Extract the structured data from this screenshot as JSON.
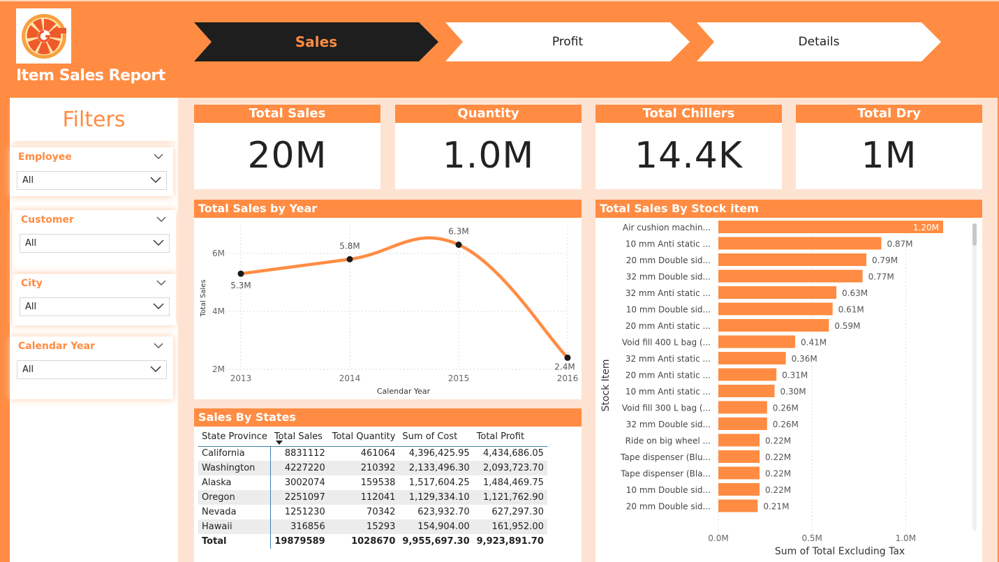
{
  "header": {
    "report_title": "Item Sales Report",
    "tabs": [
      {
        "label": "Sales",
        "active": true
      },
      {
        "label": "Profit",
        "active": false
      },
      {
        "label": "Details",
        "active": false
      }
    ]
  },
  "filters": {
    "title": "Filters",
    "slicers": [
      {
        "label": "Employee",
        "value": "All"
      },
      {
        "label": "Customer",
        "value": "All"
      },
      {
        "label": "City",
        "value": "All"
      },
      {
        "label": "Calendar Year",
        "value": "All"
      }
    ]
  },
  "cards": [
    {
      "label": "Total Sales",
      "value": "20M"
    },
    {
      "label": "Quantity",
      "value": "1.0M"
    },
    {
      "label": "Total Chillers",
      "value": "14.4K"
    },
    {
      "label": "Total Dry",
      "value": "1M"
    }
  ],
  "colors": {
    "accent": "#ff8c42",
    "dark": "#1e1e1e",
    "panel_bg": "#fee3d3"
  },
  "chart_data": [
    {
      "type": "line",
      "title": "Total Sales by Year",
      "xlabel": "Calendar Year",
      "ylabel": "Total Sales",
      "x": [
        "2013",
        "2014",
        "2015",
        "2016"
      ],
      "values": [
        5.3,
        5.8,
        6.3,
        2.4
      ],
      "data_labels": [
        "5.3M",
        "5.8M",
        "6.3M",
        "2.4M"
      ],
      "y_ticks": [
        "2M",
        "4M",
        "6M"
      ],
      "ylim": [
        2,
        6
      ],
      "grid": true
    },
    {
      "type": "bar",
      "orientation": "horizontal",
      "title": "Total Sales By Stock item",
      "xlabel": "Sum of Total Excluding Tax",
      "ylabel": "Stock Item",
      "x_ticks": [
        "0.0M",
        "0.5M",
        "1.0M"
      ],
      "xlim": [
        0,
        1.2
      ],
      "categories": [
        "Air cushion machin...",
        "10 mm Anti static ...",
        "20 mm Double sid...",
        "32 mm Double sid...",
        "32 mm Anti static ...",
        "10 mm Double sid...",
        "20 mm Anti static ...",
        "Void fill 400 L bag (...",
        "32 mm Anti static ...",
        "20 mm Anti static ...",
        "10 mm Anti static ...",
        "Void fill 300 L bag (...",
        "32 mm Double sid...",
        "Ride on big wheel ...",
        "Tape dispenser (Blu...",
        "Tape dispenser (Bla...",
        "10 mm Double sid...",
        "20 mm Double sid..."
      ],
      "values": [
        1.2,
        0.87,
        0.79,
        0.77,
        0.63,
        0.61,
        0.59,
        0.41,
        0.36,
        0.31,
        0.3,
        0.26,
        0.26,
        0.22,
        0.22,
        0.22,
        0.22,
        0.21
      ],
      "data_labels": [
        "1.20M",
        "0.87M",
        "0.79M",
        "0.77M",
        "0.63M",
        "0.61M",
        "0.59M",
        "0.41M",
        "0.36M",
        "0.31M",
        "0.30M",
        "0.26M",
        "0.26M",
        "0.22M",
        "0.22M",
        "0.22M",
        "0.22M",
        "0.21M"
      ],
      "grid": true
    }
  ],
  "states_table": {
    "title": "Sales By States",
    "columns": [
      "State Province",
      "Total Sales",
      "Total Quantity",
      "Sum of Cost",
      "Total Profit"
    ],
    "rows": [
      [
        "California",
        "8831112",
        "461064",
        "4,396,425.95",
        "4,434,686.05"
      ],
      [
        "Washington",
        "4227220",
        "210392",
        "2,133,496.30",
        "2,093,723.70"
      ],
      [
        "Alaska",
        "3002074",
        "159538",
        "1,517,604.25",
        "1,484,469.75"
      ],
      [
        "Oregon",
        "2251097",
        "112041",
        "1,129,334.10",
        "1,121,762.90"
      ],
      [
        "Nevada",
        "1251230",
        "70342",
        "623,932.70",
        "627,297.30"
      ],
      [
        "Hawaii",
        "316856",
        "15293",
        "154,904.00",
        "161,952.00"
      ]
    ],
    "total": [
      "Total",
      "19879589",
      "1028670",
      "9,955,697.30",
      "9,923,891.70"
    ]
  }
}
